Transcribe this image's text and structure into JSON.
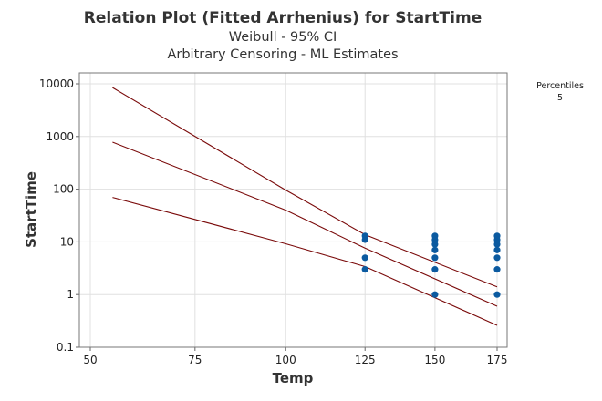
{
  "chart_data": {
    "type": "line",
    "title": "Relation Plot (Fitted Arrhenius) for StartTime",
    "subtitles": [
      "Weibull - 95% CI",
      "Arbitrary Censoring - ML Estimates"
    ],
    "xlabel": "Temp",
    "ylabel": "StartTime",
    "x_scale": "arrhenius",
    "y_scale": "log",
    "xlim": [
      50,
      175
    ],
    "ylim": [
      0.1,
      10000
    ],
    "x_ticks": [
      "50",
      "75",
      "100",
      "125",
      "150",
      "175"
    ],
    "y_ticks": [
      "0.1",
      "1",
      "10",
      "100",
      "1000",
      "10000"
    ],
    "grid": true,
    "legend": {
      "title": "Percentiles",
      "entries": [
        "5"
      ],
      "placement": "right"
    },
    "line_color": "#7a0a0a",
    "point_color": "#0b5aa0",
    "lines": [
      {
        "role": "upper-ci",
        "x": [
          55,
          100,
          125,
          175
        ],
        "y": [
          8500,
          96,
          13.7,
          1.4
        ]
      },
      {
        "role": "fit",
        "x": [
          55,
          100,
          125,
          175
        ],
        "y": [
          780,
          40,
          7.6,
          0.6
        ]
      },
      {
        "role": "lower-ci",
        "x": [
          55,
          100,
          125,
          175
        ],
        "y": [
          70,
          9.2,
          3.4,
          0.26
        ]
      }
    ],
    "points": [
      {
        "x": 125,
        "y": [
          3,
          5,
          11,
          13
        ]
      },
      {
        "x": 150,
        "y": [
          1,
          3,
          5,
          7,
          9,
          11,
          13
        ]
      },
      {
        "x": 175,
        "y": [
          1,
          3,
          5,
          7,
          9,
          11,
          13
        ]
      }
    ]
  }
}
